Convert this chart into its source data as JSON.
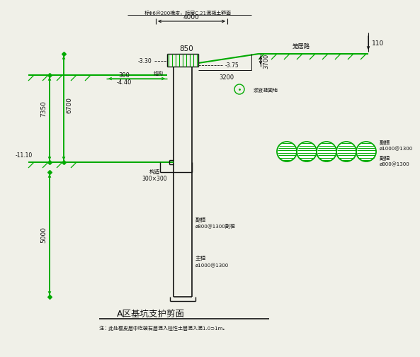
{
  "bg_color": "#f0f0e8",
  "green": "#00aa00",
  "black": "#111111",
  "top_label": "标Φ6@200橡皮，标层C.21混凝土额面",
  "dim_4000": "4000",
  "dim_850": "850",
  "dim_3700": "3700",
  "dim_110": "110",
  "dim_330": "-3.30",
  "dim_375": "-3.75",
  "dim_440": "-4.40",
  "dim_300": "300",
  "dim_3200": "3200",
  "dim_7350": "7350",
  "dim_6700": "6700",
  "dim_1110": "-11.10",
  "dim_5000": "5000",
  "label_300x300": "300×300",
  "label_jiegou": "结构",
  "label_gouzao": "构造",
  "label_road": "笼居路",
  "label_main_pile1": "主桓",
  "label_main_pile2": "ø1000@1300",
  "label_sec_pile1": "副桓",
  "label_sec_pile2": "ø800@1300副桓",
  "label_detail1a": "副桓",
  "label_detail1b": "ø1000@1300",
  "label_detail2a": "副桓",
  "label_detail2b": "ø800@1300",
  "label_slurry": "浆液凝固地",
  "title": "A区基坑支护剪面",
  "note": "注：此处樱皮层中吃破石层混入桂性土层混入混1.0⊃1m。"
}
